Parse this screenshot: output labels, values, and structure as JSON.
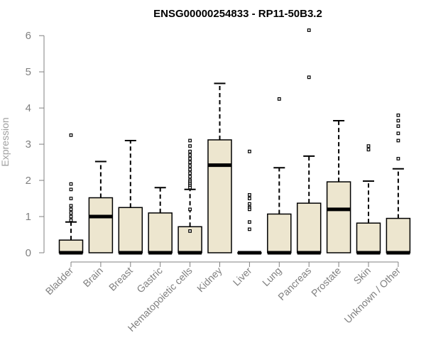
{
  "chart_data": {
    "type": "boxplot",
    "title": "ENSG00000254833 - RP11-50B3.2",
    "ylabel": "Expression",
    "xlabel": "",
    "ylim": [
      0,
      6.2
    ],
    "yticks": [
      "0",
      "1",
      "2",
      "3",
      "4",
      "5",
      "6"
    ],
    "grid": false,
    "box_fill": "#ede6cf",
    "categories": [
      "Bladder",
      "Brain",
      "Breast",
      "Gastric",
      "Hematopoietic cells",
      "Kidney",
      "Liver",
      "Lung",
      "Pancreas",
      "Prostate",
      "Skin",
      "Unknown / Other"
    ],
    "series": [
      {
        "category": "Bladder",
        "min": 0,
        "q1": 0,
        "median": 0,
        "q3": 0.35,
        "max": 0.85,
        "outliers": [
          3.25,
          1.9,
          1.75,
          1.5,
          1.3,
          1.2,
          1.1,
          1.0,
          0.9
        ]
      },
      {
        "category": "Brain",
        "min": 0,
        "q1": 0,
        "median": 1.0,
        "q3": 1.52,
        "max": 2.52,
        "outliers": []
      },
      {
        "category": "Breast",
        "min": 0,
        "q1": 0,
        "median": 0,
        "q3": 1.25,
        "max": 3.1,
        "outliers": []
      },
      {
        "category": "Gastric",
        "min": 0,
        "q1": 0,
        "median": 0,
        "q3": 1.1,
        "max": 1.8,
        "outliers": []
      },
      {
        "category": "Hematopoietic cells",
        "min": 0,
        "q1": 0,
        "median": 0,
        "q3": 0.72,
        "max": 1.75,
        "outliers": [
          3.1,
          2.95,
          2.8,
          2.7,
          2.6,
          2.5,
          2.4,
          2.3,
          2.2,
          2.1,
          2.0,
          1.95,
          1.9,
          1.85,
          1.8,
          1.2,
          0.6
        ]
      },
      {
        "category": "Kidney",
        "min": 0,
        "q1": 0,
        "median": 2.42,
        "q3": 3.12,
        "max": 4.68,
        "outliers": []
      },
      {
        "category": "Liver",
        "min": 0,
        "q1": 0,
        "median": 0,
        "q3": 0,
        "max": 0,
        "outliers": [
          2.8,
          1.6,
          1.5,
          1.35,
          1.25,
          1.2,
          0.85,
          0.65
        ]
      },
      {
        "category": "Lung",
        "min": 0,
        "q1": 0,
        "median": 0,
        "q3": 1.07,
        "max": 2.35,
        "outliers": [
          4.25
        ]
      },
      {
        "category": "Pancreas",
        "min": 0,
        "q1": 0,
        "median": 0,
        "q3": 1.37,
        "max": 2.67,
        "outliers": [
          6.15,
          4.85
        ]
      },
      {
        "category": "Prostate",
        "min": 0,
        "q1": 0,
        "median": 1.2,
        "q3": 1.96,
        "max": 3.65,
        "outliers": []
      },
      {
        "category": "Skin",
        "min": 0,
        "q1": 0,
        "median": 0,
        "q3": 0.82,
        "max": 1.98,
        "outliers": [
          2.95,
          2.85
        ]
      },
      {
        "category": "Unknown / Other",
        "min": 0,
        "q1": 0,
        "median": 0,
        "q3": 0.95,
        "max": 2.32,
        "outliers": [
          3.8,
          3.65,
          3.5,
          3.3,
          3.1,
          2.6
        ]
      }
    ]
  }
}
